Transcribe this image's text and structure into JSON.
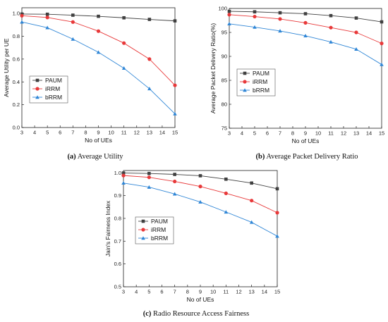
{
  "chart_data": [
    {
      "type": "line",
      "caption_letter": "(a)",
      "caption_text": " Average Utility",
      "xlabel": "No of UEs",
      "ylabel": "Average Utility per UE",
      "x_ticks": [
        3,
        4,
        5,
        6,
        7,
        8,
        9,
        10,
        11,
        12,
        13,
        14,
        15
      ],
      "y_ticks": [
        0.0,
        0.2,
        0.4,
        0.6,
        0.8,
        1.0
      ],
      "y_tick_labels": [
        "0.0",
        "0.2",
        "0.4",
        "0.6",
        "0.8",
        "1.0"
      ],
      "xlim": [
        3,
        15
      ],
      "ylim": [
        0,
        1.05
      ],
      "legend": "center-left",
      "grid": false,
      "x": [
        3,
        5,
        7,
        9,
        11,
        13,
        15
      ],
      "series": [
        {
          "name": "PAUM",
          "color": "#404040",
          "marker": "square",
          "values": [
            0.995,
            0.993,
            0.985,
            0.975,
            0.962,
            0.948,
            0.935
          ]
        },
        {
          "name": "iRRM",
          "color": "#e8393a",
          "marker": "circle",
          "values": [
            0.98,
            0.965,
            0.925,
            0.845,
            0.74,
            0.6,
            0.37
          ]
        },
        {
          "name": "bRRM",
          "color": "#2f86d6",
          "marker": "triangle",
          "values": [
            0.925,
            0.875,
            0.775,
            0.66,
            0.52,
            0.34,
            0.12
          ]
        }
      ]
    },
    {
      "type": "line",
      "caption_letter": "(b)",
      "caption_text": " Average Packet Delivery Ratio",
      "xlabel": "No of UEs",
      "ylabel": "Average Packet Delivery Ratio(%)",
      "x_ticks": [
        3,
        4,
        5,
        6,
        7,
        8,
        9,
        10,
        11,
        12,
        13,
        14,
        15
      ],
      "y_ticks": [
        75,
        80,
        85,
        90,
        95,
        100
      ],
      "y_tick_labels": [
        "75",
        "80",
        "85",
        "90",
        "95",
        "100"
      ],
      "xlim": [
        3,
        15
      ],
      "ylim": [
        75,
        100
      ],
      "legend": "center-left",
      "grid": false,
      "x": [
        3,
        5,
        7,
        9,
        11,
        13,
        15
      ],
      "series": [
        {
          "name": "PAUM",
          "color": "#404040",
          "marker": "square",
          "values": [
            99.4,
            99.3,
            99.1,
            98.9,
            98.5,
            98.0,
            97.2
          ]
        },
        {
          "name": "iRRM",
          "color": "#e8393a",
          "marker": "circle",
          "values": [
            98.7,
            98.3,
            97.8,
            97.0,
            96.0,
            95.0,
            92.7
          ]
        },
        {
          "name": "bRRM",
          "color": "#2f86d6",
          "marker": "triangle",
          "values": [
            96.8,
            96.1,
            95.3,
            94.3,
            93.0,
            91.5,
            88.3
          ]
        }
      ]
    },
    {
      "type": "line",
      "caption_letter": "(c)",
      "caption_text": " Radio Resource Access Fairness",
      "xlabel": "No of UEs",
      "ylabel": "Jain's Fairness Index",
      "x_ticks": [
        3,
        4,
        5,
        6,
        7,
        8,
        9,
        10,
        11,
        12,
        13,
        14,
        15
      ],
      "y_ticks": [
        0.5,
        0.6,
        0.7,
        0.8,
        0.9,
        1.0
      ],
      "y_tick_labels": [
        "0.5",
        "0.6",
        "0.7",
        "0.8",
        "0.9",
        "1.0"
      ],
      "xlim": [
        3,
        15
      ],
      "ylim": [
        0.5,
        1.01
      ],
      "legend": "center",
      "grid": false,
      "x": [
        3,
        5,
        7,
        9,
        11,
        13,
        15
      ],
      "series": [
        {
          "name": "PAUM",
          "color": "#404040",
          "marker": "square",
          "values": [
            0.999,
            0.997,
            0.993,
            0.987,
            0.972,
            0.955,
            0.93
          ]
        },
        {
          "name": "iRRM",
          "color": "#e8393a",
          "marker": "circle",
          "values": [
            0.988,
            0.98,
            0.962,
            0.94,
            0.91,
            0.878,
            0.825
          ]
        },
        {
          "name": "bRRM",
          "color": "#2f86d6",
          "marker": "triangle",
          "values": [
            0.955,
            0.937,
            0.907,
            0.872,
            0.828,
            0.783,
            0.722
          ]
        }
      ]
    }
  ]
}
